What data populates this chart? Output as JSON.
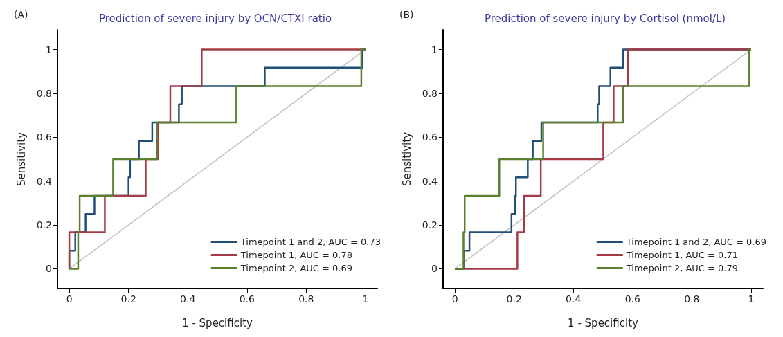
{
  "chart_data": [
    {
      "type": "line",
      "title": "Prediction of severe injury by OCN/CTXI ratio",
      "annotations": [
        "(A)"
      ],
      "xlabel": "1 - Specificity",
      "ylabel": "Sensitivity",
      "xlim": [
        -0.04,
        1.04
      ],
      "ylim": [
        -0.09,
        1.09
      ],
      "xticks": [
        0,
        0.2,
        0.4,
        0.6,
        0.8,
        1
      ],
      "yticks": [
        0,
        0.2,
        0.4,
        0.6,
        0.8,
        1
      ],
      "grid": false,
      "legend": "bottom right",
      "marker": "none",
      "line_style": "solid",
      "series": [
        {
          "color": "#c0c0c0",
          "x": [
            0,
            1
          ],
          "values": [
            0,
            1
          ]
        },
        {
          "name": "Timepoint 1 and 2, AUC = 0.73",
          "color": "#1f4e79",
          "x": [
            0,
            0,
            0.02,
            0.02,
            0.055,
            0.055,
            0.085,
            0.085,
            0.2,
            0.2,
            0.205,
            0.205,
            0.235,
            0.235,
            0.28,
            0.28,
            0.37,
            0.37,
            0.38,
            0.38,
            0.66,
            0.66,
            0.99,
            0.99,
            1
          ],
          "values": [
            0,
            0.083,
            0.083,
            0.167,
            0.167,
            0.25,
            0.25,
            0.333,
            0.333,
            0.417,
            0.417,
            0.5,
            0.5,
            0.583,
            0.583,
            0.667,
            0.667,
            0.75,
            0.75,
            0.833,
            0.833,
            0.917,
            0.917,
            1,
            1
          ]
        },
        {
          "name": "Timepoint 1, AUC = 0.78",
          "color": "#a33a44",
          "x": [
            0,
            0,
            0.12,
            0.12,
            0.258,
            0.258,
            0.3,
            0.3,
            0.341,
            0.341,
            0.447,
            0.447,
            1
          ],
          "values": [
            0,
            0.167,
            0.167,
            0.333,
            0.333,
            0.5,
            0.5,
            0.667,
            0.667,
            0.833,
            0.833,
            1,
            1
          ]
        },
        {
          "name": "Timepoint 2, AUC = 0.69",
          "color": "#5a7f2e",
          "x": [
            0,
            0.03,
            0.03,
            0.035,
            0.035,
            0.148,
            0.148,
            0.295,
            0.295,
            0.564,
            0.564,
            0.986,
            0.986,
            1
          ],
          "values": [
            0,
            0,
            0.167,
            0.167,
            0.333,
            0.333,
            0.5,
            0.5,
            0.667,
            0.667,
            0.833,
            0.833,
            1,
            1
          ]
        }
      ]
    },
    {
      "type": "line",
      "title": "Prediction of severe injury by Cortisol (nmol/L)",
      "annotations": [
        "(B)"
      ],
      "xlabel": "1 - Specificity",
      "ylabel": "Sensitivity",
      "xlim": [
        -0.04,
        1.04
      ],
      "ylim": [
        -0.09,
        1.09
      ],
      "xticks": [
        0,
        0.2,
        0.4,
        0.6,
        0.8,
        1
      ],
      "yticks": [
        0,
        0.2,
        0.4,
        0.6,
        0.8,
        1
      ],
      "grid": false,
      "legend": "bottom right",
      "marker": "none",
      "line_style": "solid",
      "series": [
        {
          "color": "#c0c0c0",
          "x": [
            0,
            1
          ],
          "values": [
            0,
            1
          ]
        },
        {
          "name": "Timepoint 1 and 2, AUC = 0.69",
          "color": "#1f4e79",
          "x": [
            0,
            0.031,
            0.031,
            0.049,
            0.049,
            0.191,
            0.191,
            0.203,
            0.203,
            0.206,
            0.206,
            0.246,
            0.246,
            0.263,
            0.263,
            0.292,
            0.292,
            0.482,
            0.482,
            0.487,
            0.487,
            0.525,
            0.525,
            0.568,
            0.568,
            1
          ],
          "values": [
            0,
            0,
            0.083,
            0.083,
            0.167,
            0.167,
            0.25,
            0.25,
            0.333,
            0.333,
            0.417,
            0.417,
            0.5,
            0.5,
            0.583,
            0.583,
            0.667,
            0.667,
            0.75,
            0.75,
            0.833,
            0.833,
            0.917,
            0.917,
            1,
            1
          ]
        },
        {
          "name": "Timepoint 1, AUC = 0.71",
          "color": "#a33a44",
          "x": [
            0,
            0.211,
            0.211,
            0.233,
            0.233,
            0.29,
            0.29,
            0.501,
            0.501,
            0.536,
            0.536,
            0.584,
            0.584,
            1
          ],
          "values": [
            0,
            0,
            0.167,
            0.167,
            0.333,
            0.333,
            0.5,
            0.5,
            0.667,
            0.667,
            0.833,
            0.833,
            1,
            1
          ]
        },
        {
          "name": "Timepoint 2, AUC = 0.79",
          "color": "#5a7f2e",
          "x": [
            0,
            0.029,
            0.029,
            0.033,
            0.033,
            0.15,
            0.15,
            0.298,
            0.298,
            0.568,
            0.568,
            0.994,
            0.994,
            1
          ],
          "values": [
            0,
            0,
            0.167,
            0.167,
            0.333,
            0.333,
            0.5,
            0.5,
            0.667,
            0.667,
            0.833,
            0.833,
            1,
            1
          ]
        }
      ]
    }
  ]
}
